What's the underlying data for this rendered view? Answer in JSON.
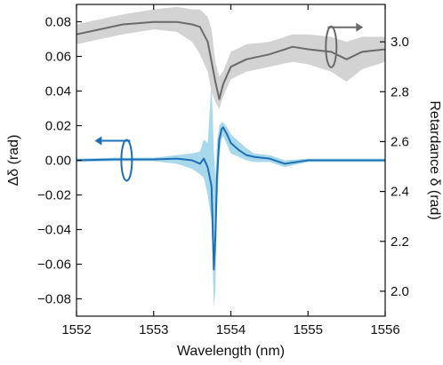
{
  "chart_data": {
    "type": "line",
    "xlabel": "Wavelength (nm)",
    "ylabel_left": "Δδ (rad)",
    "ylabel_right": "Retardance δ (rad)",
    "xlim": [
      1552,
      1556
    ],
    "ylim_left": [
      -0.09,
      0.09
    ],
    "ylim_right": [
      1.9,
      3.15
    ],
    "x_ticks": [
      1552,
      1553,
      1554,
      1555,
      1556
    ],
    "x_tick_labels": [
      "1552",
      "1553",
      "1554",
      "1555",
      "1556"
    ],
    "y_left_ticks": [
      0.08,
      0.06,
      0.04,
      0.02,
      0.0,
      -0.02,
      -0.04,
      -0.06,
      -0.08
    ],
    "y_left_tick_labels": [
      "0.08",
      "0.06",
      "0.04",
      "0.02",
      "0.00",
      "−0.02",
      "−0.04",
      "−0.06",
      "−0.08"
    ],
    "y_right_ticks": [
      3.0,
      2.8,
      2.6,
      2.4,
      2.2,
      2.0
    ],
    "y_right_tick_labels": [
      "3.0",
      "2.8",
      "2.6",
      "2.4",
      "2.2",
      "2.0"
    ],
    "grid": false,
    "series": [
      {
        "axis": "left",
        "color": "#1f6fb4",
        "band_color": "#a8d8ec",
        "x": [
          1552.0,
          1552.5,
          1553.0,
          1553.3,
          1553.5,
          1553.6,
          1553.65,
          1553.7,
          1553.75,
          1553.78,
          1553.8,
          1553.82,
          1553.85,
          1553.88,
          1553.9,
          1553.95,
          1554.0,
          1554.1,
          1554.2,
          1554.3,
          1554.5,
          1554.7,
          1555.0,
          1555.5,
          1556.0
        ],
        "y": [
          0.0,
          0.0005,
          0.0005,
          0.001,
          0.0,
          -0.002,
          0.001,
          -0.004,
          -0.015,
          -0.063,
          -0.045,
          -0.01,
          0.012,
          0.018,
          0.019,
          0.015,
          0.01,
          0.006,
          0.003,
          0.002,
          0.001,
          -0.002,
          0.0,
          0.0,
          0.0
        ],
        "band_lower": [
          -0.001,
          -0.0005,
          -0.0005,
          -0.002,
          -0.005,
          -0.008,
          -0.01,
          -0.02,
          -0.035,
          -0.085,
          -0.075,
          -0.03,
          0.002,
          0.012,
          0.014,
          0.009,
          0.004,
          0.002,
          0.0,
          -0.001,
          -0.001,
          -0.004,
          -0.001,
          -0.001,
          -0.001
        ],
        "band_upper": [
          0.001,
          0.0015,
          0.0015,
          0.003,
          0.004,
          0.005,
          0.012,
          0.01,
          0.045,
          0.005,
          -0.01,
          0.01,
          0.02,
          0.022,
          0.022,
          0.019,
          0.015,
          0.011,
          0.007,
          0.004,
          0.003,
          0.0,
          0.001,
          0.001,
          0.001
        ]
      },
      {
        "axis": "right",
        "color": "#6a6a6a",
        "band_color": "#d3d3d3",
        "x": [
          1552.0,
          1552.3,
          1552.6,
          1553.0,
          1553.3,
          1553.5,
          1553.6,
          1553.7,
          1553.75,
          1553.8,
          1553.85,
          1553.9,
          1554.0,
          1554.2,
          1554.5,
          1554.8,
          1555.0,
          1555.3,
          1555.5,
          1555.7,
          1556.0
        ],
        "y": [
          3.03,
          3.05,
          3.07,
          3.08,
          3.08,
          3.07,
          3.06,
          3.0,
          2.92,
          2.84,
          2.77,
          2.83,
          2.9,
          2.93,
          2.95,
          2.98,
          2.97,
          2.96,
          2.93,
          2.96,
          2.97
        ],
        "band_lower": [
          2.99,
          3.01,
          3.03,
          3.05,
          3.04,
          3.0,
          2.95,
          2.88,
          2.8,
          2.76,
          2.73,
          2.78,
          2.85,
          2.88,
          2.9,
          2.92,
          2.91,
          2.88,
          2.84,
          2.89,
          2.92
        ],
        "band_upper": [
          3.07,
          3.09,
          3.11,
          3.13,
          3.14,
          3.13,
          3.13,
          3.1,
          3.05,
          2.92,
          2.86,
          2.88,
          2.96,
          2.99,
          3.0,
          3.03,
          3.03,
          3.02,
          3.0,
          3.02,
          3.02
        ]
      }
    ],
    "annotations": [
      {
        "series_axis": "left",
        "arrow_direction": "left",
        "x": 1552.65,
        "y": 0.0
      },
      {
        "series_axis": "right",
        "arrow_direction": "right",
        "x": 1555.3,
        "y": 2.98
      }
    ]
  }
}
